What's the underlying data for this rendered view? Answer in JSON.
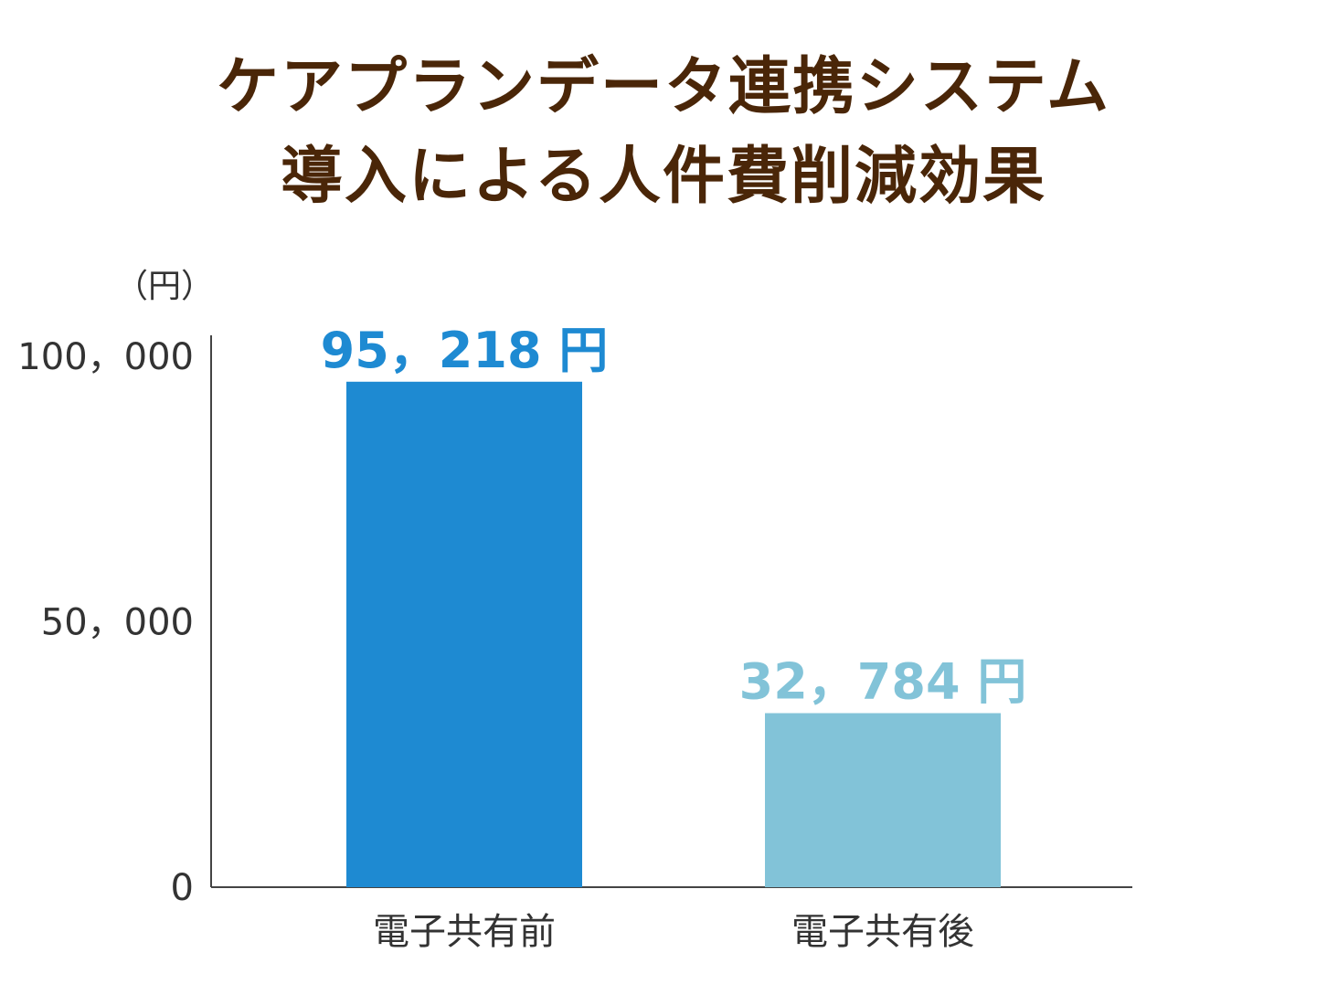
{
  "chart_data": {
    "type": "bar",
    "title": [
      "ケアプランデータ連携システム",
      "導入による人件費削減効果"
    ],
    "unit_label": "（円）",
    "categories": [
      "電子共有前",
      "電子共有後"
    ],
    "values": [
      95218,
      32784
    ],
    "data_labels": [
      "95，218 円",
      "32，784 円"
    ],
    "colors": [
      "#1e8ad2",
      "#82c3d8"
    ],
    "yticks": [
      0,
      50000,
      100000
    ],
    "ytick_labels": [
      "0",
      "50，000",
      "100，000"
    ],
    "ylim": [
      0,
      104000
    ],
    "grid": false,
    "legend": "none"
  }
}
